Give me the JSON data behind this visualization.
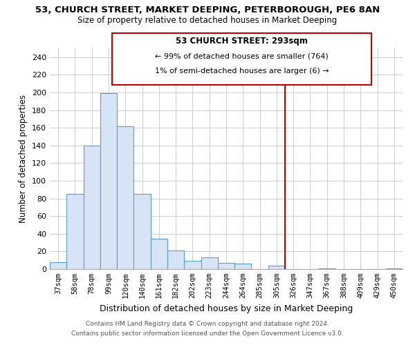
{
  "title": "53, CHURCH STREET, MARKET DEEPING, PETERBOROUGH, PE6 8AN",
  "subtitle": "Size of property relative to detached houses in Market Deeping",
  "xlabel": "Distribution of detached houses by size in Market Deeping",
  "ylabel": "Number of detached properties",
  "bar_labels": [
    "37sqm",
    "58sqm",
    "78sqm",
    "99sqm",
    "120sqm",
    "140sqm",
    "161sqm",
    "182sqm",
    "202sqm",
    "223sqm",
    "244sqm",
    "264sqm",
    "285sqm",
    "305sqm",
    "326sqm",
    "347sqm",
    "367sqm",
    "388sqm",
    "409sqm",
    "429sqm",
    "450sqm"
  ],
  "bar_values": [
    8,
    85,
    140,
    199,
    162,
    85,
    34,
    21,
    9,
    13,
    7,
    6,
    0,
    4,
    0,
    0,
    1,
    0,
    0,
    0,
    1
  ],
  "bar_color": "#d6e4f5",
  "bar_edge_color": "#5b9bd5",
  "ylim": [
    0,
    250
  ],
  "yticks": [
    0,
    20,
    40,
    60,
    80,
    100,
    120,
    140,
    160,
    180,
    200,
    220,
    240
  ],
  "vline_color": "#c00000",
  "annotation_title": "53 CHURCH STREET: 293sqm",
  "annotation_line1": "← 99% of detached houses are smaller (764)",
  "annotation_line2": "1% of semi-detached houses are larger (6) →",
  "footer_line1": "Contains HM Land Registry data © Crown copyright and database right 2024.",
  "footer_line2": "Contains public sector information licensed under the Open Government Licence v3.0.",
  "background_color": "#ffffff",
  "grid_color": "#cccccc"
}
